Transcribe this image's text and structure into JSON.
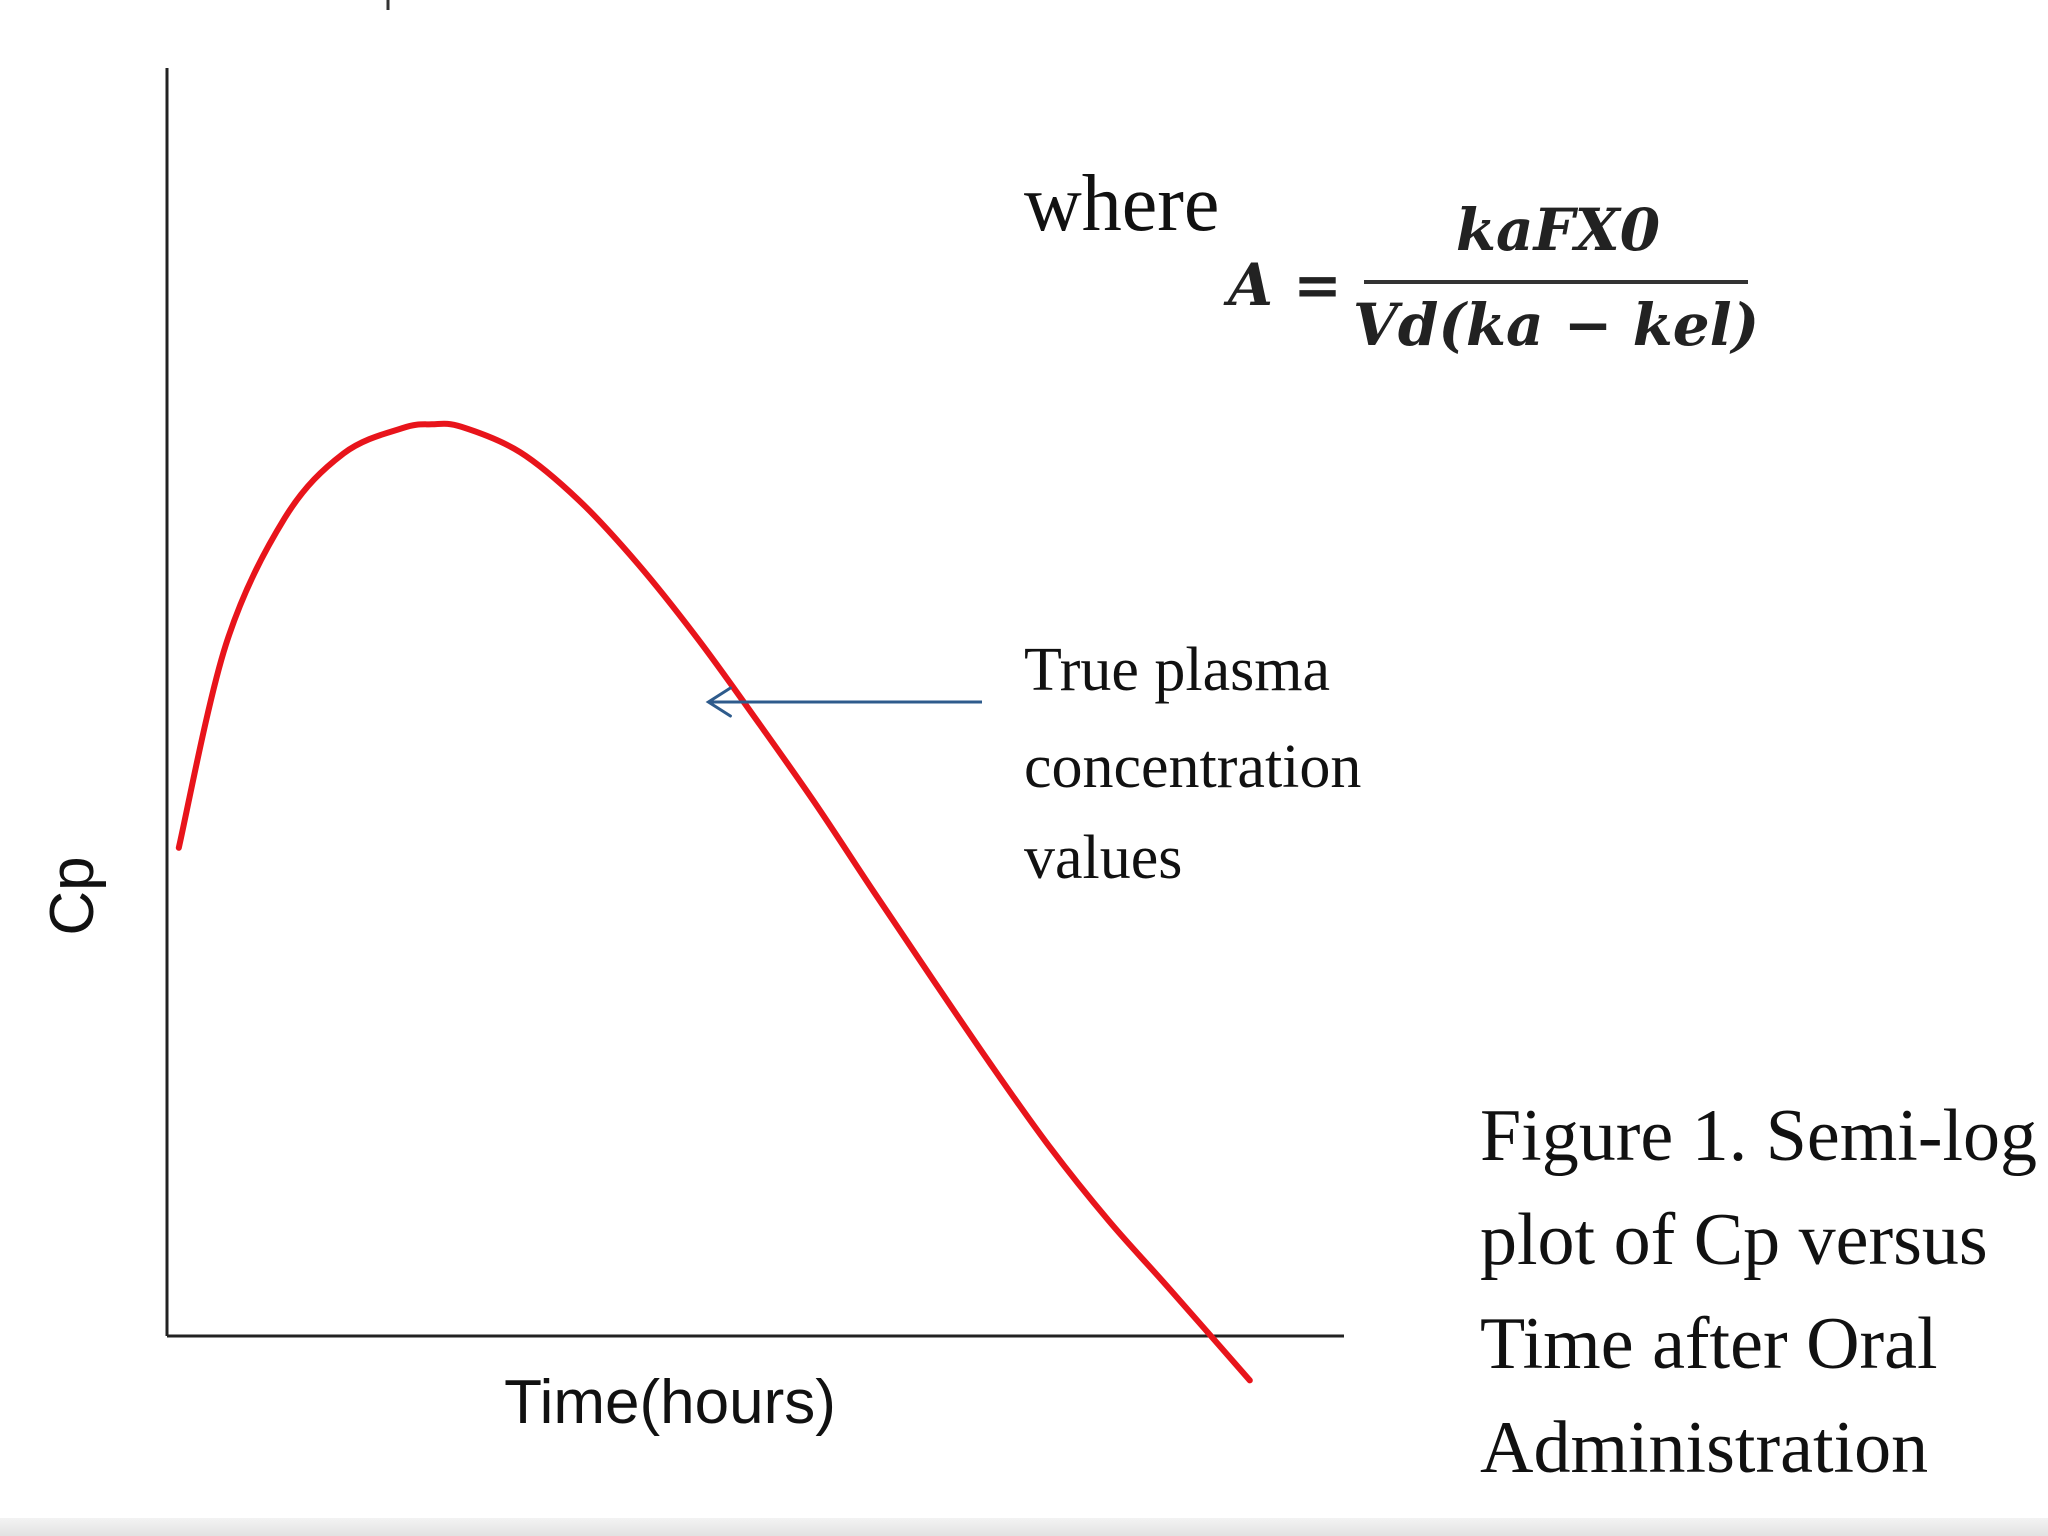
{
  "chart_data": {
    "type": "line",
    "xlabel": "Time(hours)",
    "ylabel": "Cp",
    "xlim": [
      0,
      10
    ],
    "ylim": [
      0,
      10
    ],
    "grid": false,
    "series": [
      {
        "color": "#e8141b",
        "x": [
          0.1,
          0.5,
          1.0,
          1.5,
          2.0,
          2.25,
          2.5,
          3.0,
          3.5,
          4.0,
          4.5,
          5.0,
          5.5,
          6.0,
          6.5,
          7.0,
          7.5,
          8.0,
          8.5,
          9.2
        ],
        "y": [
          3.85,
          5.45,
          6.45,
          6.96,
          7.16,
          7.19,
          7.17,
          6.97,
          6.59,
          6.09,
          5.51,
          4.87,
          4.21,
          3.51,
          2.82,
          2.14,
          1.49,
          0.91,
          0.39,
          -0.35
        ]
      }
    ],
    "annotations": [
      {
        "text_lines": [
          "True plasma",
          "concentration",
          "values"
        ],
        "arrow_color": "#2e5b8c",
        "points_to": {
          "x": 4.6,
          "y": 5.0
        }
      }
    ]
  },
  "formula": {
    "where": "where",
    "lhs": "A =",
    "numerator": "kaFX0",
    "denominator": "Vd(ka − kel)"
  },
  "caption": {
    "lines": [
      "Figure 1.  Semi-log",
      "plot of Cp versus",
      "Time after Oral",
      "Administration"
    ]
  }
}
